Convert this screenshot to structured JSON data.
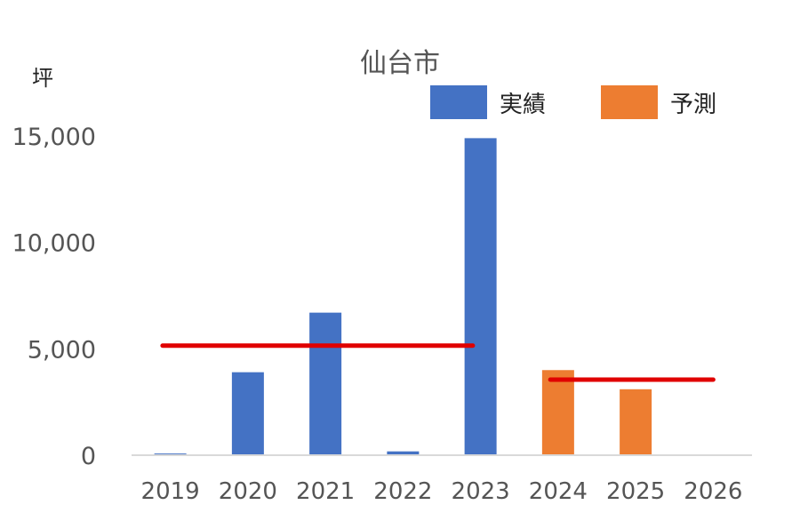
{
  "chart_data": {
    "type": "bar",
    "title": "仙台市",
    "ylabel": "坪",
    "xlabel": "",
    "ylim": [
      0,
      15000
    ],
    "yticks": [
      0,
      5000,
      10000,
      15000
    ],
    "ytick_labels": [
      "0",
      "5,000",
      "10,000",
      "15,000"
    ],
    "categories": [
      "2019",
      "2020",
      "2021",
      "2022",
      "2023",
      "2024",
      "2025",
      "2026"
    ],
    "series": [
      {
        "name": "実績",
        "color": "#4472C4",
        "values": [
          80,
          3900,
          6700,
          180,
          14900,
          null,
          null,
          null
        ]
      },
      {
        "name": "予測",
        "color": "#ED7D31",
        "values": [
          null,
          null,
          null,
          null,
          null,
          4000,
          3100,
          null
        ]
      }
    ],
    "average_lines": [
      {
        "color": "#E00000",
        "from": "2019",
        "to": "2023",
        "value": 5150
      },
      {
        "color": "#E00000",
        "from": "2024",
        "to": "2026",
        "value": 3550
      }
    ],
    "grid": false,
    "legend_position": "top-right"
  }
}
